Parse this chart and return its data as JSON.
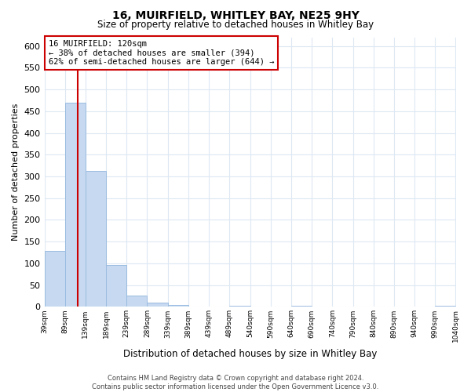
{
  "title": "16, MUIRFIELD, WHITLEY BAY, NE25 9HY",
  "subtitle": "Size of property relative to detached houses in Whitley Bay",
  "xlabel": "Distribution of detached houses by size in Whitley Bay",
  "ylabel": "Number of detached properties",
  "bar_edges": [
    39,
    89,
    139,
    189,
    239,
    289,
    339,
    389,
    439,
    489,
    540,
    590,
    640,
    690,
    740,
    790,
    840,
    890,
    940,
    990,
    1040
  ],
  "bar_heights": [
    128,
    470,
    312,
    96,
    26,
    10,
    4,
    0,
    0,
    3,
    0,
    0,
    2,
    0,
    0,
    0,
    0,
    0,
    0,
    2
  ],
  "bar_color": "#c6d9f0",
  "bar_edgecolor": "#9bbce0",
  "property_line_x": 120,
  "property_line_color": "#cc0000",
  "ylim": [
    0,
    620
  ],
  "yticks": [
    0,
    50,
    100,
    150,
    200,
    250,
    300,
    350,
    400,
    450,
    500,
    550,
    600
  ],
  "annotation_title": "16 MUIRFIELD: 120sqm",
  "annotation_line1": "← 38% of detached houses are smaller (394)",
  "annotation_line2": "62% of semi-detached houses are larger (644) →",
  "annotation_box_color": "#ffffff",
  "annotation_border_color": "#cc0000",
  "footer_line1": "Contains HM Land Registry data © Crown copyright and database right 2024.",
  "footer_line2": "Contains public sector information licensed under the Open Government Licence v3.0.",
  "grid_color": "#dde8f3",
  "background_color": "#ffffff"
}
